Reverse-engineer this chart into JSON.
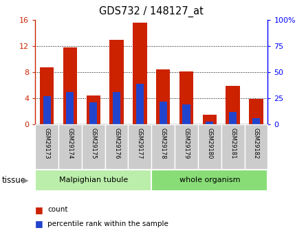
{
  "title": "GDS732 / 148127_at",
  "samples": [
    "GSM29173",
    "GSM29174",
    "GSM29175",
    "GSM29176",
    "GSM29177",
    "GSM29178",
    "GSM29179",
    "GSM29180",
    "GSM29181",
    "GSM29182"
  ],
  "count_values": [
    8.8,
    11.8,
    4.4,
    13.0,
    15.6,
    8.4,
    8.1,
    1.5,
    5.9,
    3.9
  ],
  "percentile_values": [
    27,
    31,
    21,
    31,
    39,
    22,
    19,
    3,
    12,
    6
  ],
  "count_color": "#cc2200",
  "percentile_color": "#2244cc",
  "ylim_left": [
    0,
    16
  ],
  "ylim_right": [
    0,
    100
  ],
  "yticks_left": [
    0,
    4,
    8,
    12,
    16
  ],
  "ytick_labels_left": [
    "0",
    "4",
    "8",
    "12",
    "16"
  ],
  "yticks_right": [
    0,
    25,
    50,
    75,
    100
  ],
  "ytick_labels_right": [
    "0",
    "25",
    "50",
    "75",
    "100%"
  ],
  "groups": [
    {
      "label": "Malpighian tubule",
      "start": 0,
      "end": 5,
      "color": "#bbeeaa"
    },
    {
      "label": "whole organism",
      "start": 5,
      "end": 10,
      "color": "#88dd77"
    }
  ],
  "tissue_label": "tissue",
  "legend_count": "count",
  "legend_pct": "percentile rank within the sample",
  "bar_width": 0.6,
  "label_box_color": "#cccccc",
  "fig_bg": "#ffffff"
}
